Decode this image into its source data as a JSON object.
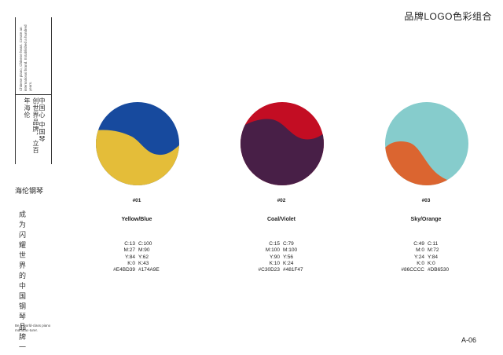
{
  "header": {
    "title": "品牌LOGO色彩组合"
  },
  "sidebar": {
    "english_tagline": "Chinese piano, Chinese heart. Create an international brand. Established a hundred years.",
    "cn_line_1": "创世界品牌，立百年海伦",
    "cn_line_2": "中国心 中国琴",
    "brand_name": "海伦钢琴",
    "slogan": "成为闪耀世界的中国钢琴品牌一",
    "english_small": "Be a world-class piano manufac-turer."
  },
  "swatches": [
    {
      "number": "#01",
      "name": "Yellow/Blue",
      "colors": {
        "top": "#174A9E",
        "bottom": "#E4BD39"
      },
      "spec_left": [
        "C:13",
        "M:27",
        "Y:84",
        "K:0",
        "#E4BD39"
      ],
      "spec_right": [
        "C:100",
        "M:90",
        "Y:62",
        "K:43",
        "#174A9E"
      ]
    },
    {
      "number": "#02",
      "name": "Coal/Violet",
      "colors": {
        "top": "#C30D23",
        "bottom": "#481F47"
      },
      "spec_left": [
        "C:15",
        "M:100",
        "Y:90",
        "K:10",
        "#C30D23"
      ],
      "spec_right": [
        "C:79",
        "M:100",
        "Y:56",
        "K:24",
        "#481F47"
      ]
    },
    {
      "number": "#03",
      "name": "Sky/Orange",
      "colors": {
        "top": "#86CCCC",
        "bottom": "#DB6530"
      },
      "spec_left": [
        "C:49",
        "M:0",
        "Y:24",
        "K:0",
        "#86CCCC"
      ],
      "spec_right": [
        "C:11",
        "M:72",
        "Y:84",
        "K:0",
        "#DB6530"
      ]
    }
  ],
  "footer": {
    "page_number": "A-06"
  }
}
